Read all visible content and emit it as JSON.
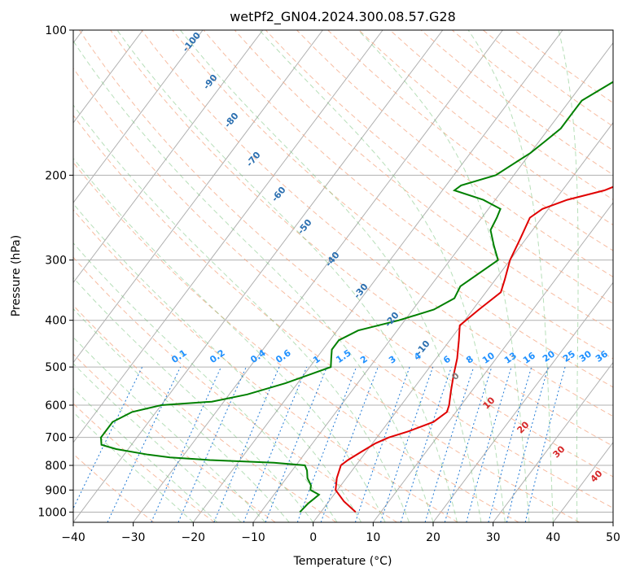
{
  "chart_data": {
    "type": "line",
    "title": "wetPf2_GN04.2024.300.08.57.G28",
    "xlabel": "Temperature (°C)",
    "ylabel": "Pressure (hPa)",
    "xlim": [
      -40,
      50
    ],
    "ylim": [
      1050,
      100
    ],
    "y_scale": "log",
    "x_ticks": [
      -40,
      -30,
      -20,
      -10,
      0,
      10,
      20,
      30,
      40,
      50
    ],
    "x_tick_labels": [
      "−40",
      "−30",
      "−20",
      "−10",
      "0",
      "10",
      "20",
      "30",
      "40",
      "50"
    ],
    "y_ticks": [
      1000,
      900,
      800,
      700,
      600,
      500,
      400,
      300,
      200,
      100
    ],
    "grid": true,
    "series": [
      {
        "color": "#e00000",
        "p": [
          1000,
          950,
          900,
          850,
          800,
          780,
          750,
          720,
          700,
          680,
          650,
          620,
          600,
          560,
          520,
          480,
          440,
          410,
          380,
          350,
          330,
          300,
          270,
          245,
          235,
          225,
          215,
          200,
          180,
          150,
          120,
          100
        ],
        "t": [
          5.8,
          2.5,
          -0.3,
          -1.6,
          -2.5,
          -2.0,
          -0.8,
          0.5,
          2.0,
          4.5,
          7.5,
          8.5,
          8.0,
          6.5,
          5.0,
          3.5,
          1.5,
          -0.2,
          1.0,
          2.5,
          1.6,
          0.0,
          -1.0,
          -2.0,
          -1.0,
          2.0,
          7.0,
          11.5,
          16.5,
          24.0,
          30.0,
          38.0
        ]
      },
      {
        "color": "#008000",
        "p": [
          1000,
          960,
          920,
          900,
          880,
          850,
          820,
          800,
          790,
          780,
          770,
          760,
          740,
          725,
          700,
          650,
          620,
          600,
          590,
          570,
          540,
          500,
          480,
          460,
          440,
          420,
          400,
          380,
          360,
          340,
          300,
          280,
          260,
          245,
          235,
          225,
          215,
          210,
          200,
          180,
          170,
          160,
          150,
          140,
          120,
          100
        ],
        "t": [
          -3.5,
          -3.2,
          -2.5,
          -4.5,
          -5.0,
          -6.5,
          -7.5,
          -8.5,
          -14.0,
          -25.0,
          -32.0,
          -36.0,
          -42.0,
          -45.0,
          -46.0,
          -46.0,
          -44.0,
          -40.0,
          -32.0,
          -27.0,
          -22.0,
          -16.5,
          -17.5,
          -18.5,
          -18.5,
          -16.5,
          -11.0,
          -6.5,
          -4.5,
          -5.0,
          -2.0,
          -4.5,
          -7.0,
          -7.5,
          -8.0,
          -12.0,
          -18.0,
          -17.5,
          -13.0,
          -10.0,
          -9.0,
          -8.0,
          -8.0,
          -8.0,
          -3.0,
          3.0
        ]
      }
    ],
    "mixing_ratio_labels": [
      "0.1",
      "0.2",
      "0.4",
      "0.6",
      "1",
      "1.5",
      "2",
      "3",
      "4",
      "6",
      "8",
      "10",
      "13",
      "16",
      "20",
      "25",
      "30",
      "36"
    ],
    "dry_adiabat_labels": [
      "-100",
      "-90",
      "-80",
      "-70",
      "-60",
      "-50",
      "-40",
      "-30",
      "-20",
      "-10"
    ],
    "moist_adiabat_labels": [
      {
        "text": "0",
        "color": "#808080"
      },
      {
        "text": "10",
        "color": "#d62728"
      },
      {
        "text": "20",
        "color": "#d62728"
      },
      {
        "text": "30",
        "color": "#d62728"
      },
      {
        "text": "40",
        "color": "#d62728"
      }
    ]
  }
}
